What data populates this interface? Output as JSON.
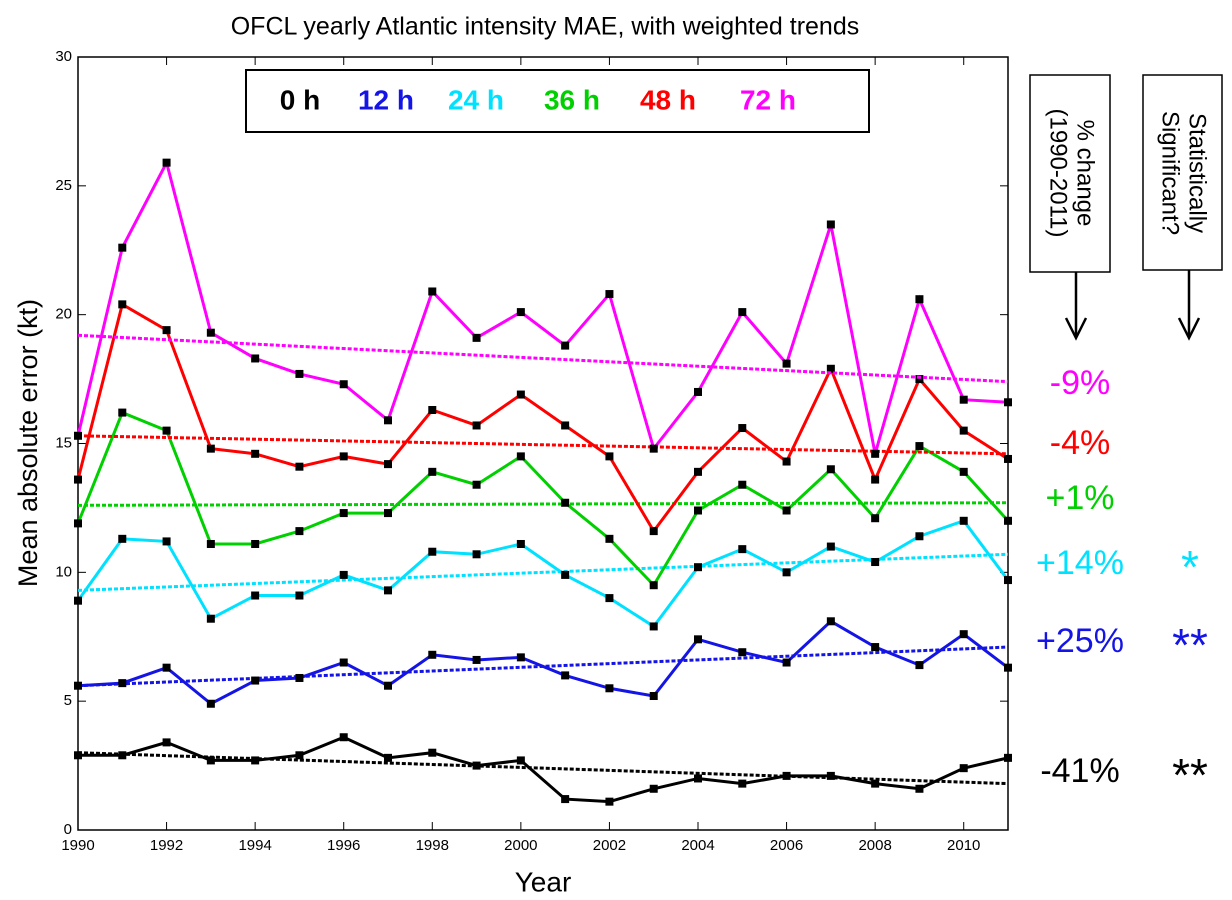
{
  "chart_data": {
    "type": "line",
    "title": "OFCL  yearly Atlantic intensity MAE, with weighted trends",
    "x_label": "Year",
    "y_label": "Mean absolute error (kt)",
    "x": [
      1990,
      1991,
      1992,
      1993,
      1994,
      1995,
      1996,
      1997,
      1998,
      1999,
      2000,
      2001,
      2002,
      2003,
      2004,
      2005,
      2006,
      2007,
      2008,
      2009,
      2010,
      2011
    ],
    "xlim": [
      1990,
      2011
    ],
    "xticks": [
      1990,
      1992,
      1994,
      1996,
      1998,
      2000,
      2002,
      2004,
      2006,
      2008,
      2010
    ],
    "ylim": [
      0,
      30
    ],
    "yticks": [
      0,
      5,
      10,
      15,
      20,
      25,
      30
    ],
    "grid": false,
    "change_header": "% change (1990-2011)",
    "significance_header": "Statistically Significant?",
    "series": [
      {
        "name": "0 h",
        "color": "#000000",
        "values": [
          2.9,
          2.9,
          3.4,
          2.7,
          2.7,
          2.9,
          3.6,
          2.8,
          3.0,
          2.5,
          2.7,
          1.2,
          1.1,
          1.6,
          2.0,
          1.8,
          2.1,
          2.1,
          1.8,
          1.6,
          2.4,
          2.8
        ],
        "trend": [
          3.0,
          1.8
        ],
        "change": "-41%",
        "significance": "**"
      },
      {
        "name": "12 h",
        "color": "#1414e6",
        "values": [
          5.6,
          5.7,
          6.3,
          4.9,
          5.8,
          5.9,
          6.5,
          5.6,
          6.8,
          6.6,
          6.7,
          6.0,
          5.5,
          5.2,
          7.4,
          6.9,
          6.5,
          8.1,
          7.1,
          6.4,
          7.6,
          6.3
        ],
        "trend": [
          5.6,
          7.1
        ],
        "change": "+25%",
        "significance": "**"
      },
      {
        "name": "24 h",
        "color": "#00e1ff",
        "values": [
          8.9,
          11.3,
          11.2,
          8.2,
          9.1,
          9.1,
          9.9,
          9.3,
          10.8,
          10.7,
          11.1,
          9.9,
          9.0,
          7.9,
          10.2,
          10.9,
          10.0,
          11.0,
          10.4,
          11.4,
          12.0,
          9.7
        ],
        "trend": [
          9.3,
          10.7
        ],
        "change": "+14%",
        "significance": "*"
      },
      {
        "name": "36 h",
        "color": "#00d000",
        "values": [
          11.9,
          16.2,
          15.5,
          11.1,
          11.1,
          11.6,
          12.3,
          12.3,
          13.9,
          13.4,
          14.5,
          12.7,
          11.3,
          9.5,
          12.4,
          13.4,
          12.4,
          14.0,
          12.1,
          14.9,
          13.9,
          12.0
        ],
        "trend": [
          12.6,
          12.7
        ],
        "change": "+1%"
      },
      {
        "name": "48 h",
        "color": "#ff0000",
        "values": [
          13.6,
          20.4,
          19.4,
          14.8,
          14.6,
          14.1,
          14.5,
          14.2,
          16.3,
          15.7,
          16.9,
          15.7,
          14.5,
          11.6,
          13.9,
          15.6,
          14.3,
          17.9,
          13.6,
          17.5,
          15.5,
          14.4
        ],
        "trend": [
          15.3,
          14.6
        ],
        "change": "-4%"
      },
      {
        "name": "72 h",
        "color": "#ff00ff",
        "values": [
          15.3,
          22.6,
          25.9,
          19.3,
          18.3,
          17.7,
          17.3,
          15.9,
          20.9,
          19.1,
          20.1,
          18.8,
          20.8,
          14.8,
          17.0,
          20.1,
          18.1,
          23.5,
          14.6,
          20.6,
          16.7,
          16.6
        ],
        "trend": [
          19.2,
          17.4
        ],
        "change": "-9%"
      }
    ]
  }
}
